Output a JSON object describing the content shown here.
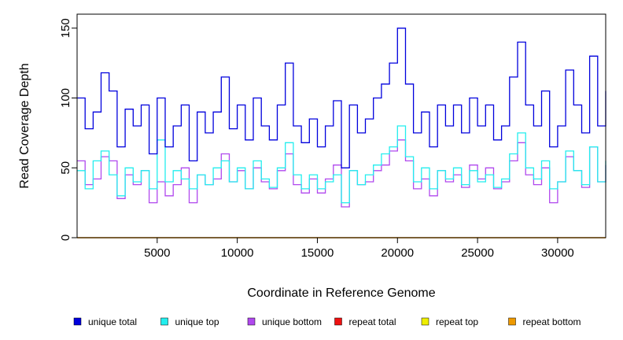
{
  "chart_data": {
    "type": "line",
    "title": "",
    "xlabel": "Coordinate in Reference Genome",
    "ylabel": "Read Coverage Depth",
    "xlim": [
      0,
      33000
    ],
    "ylim": [
      0,
      160
    ],
    "x_ticks": [
      5000,
      10000,
      15000,
      20000,
      25000,
      30000
    ],
    "y_ticks": [
      0,
      50,
      100,
      150
    ],
    "legend_position": "bottom",
    "grid": false,
    "series": [
      {
        "name": "unique total",
        "color": "#0000dd",
        "x": [
          0,
          500,
          1000,
          1500,
          2000,
          2500,
          3000,
          3500,
          4000,
          4500,
          5000,
          5500,
          6000,
          6500,
          7000,
          7500,
          8000,
          8500,
          9000,
          9500,
          10000,
          10500,
          11000,
          11500,
          12000,
          12500,
          13000,
          13500,
          14000,
          14500,
          15000,
          15500,
          16000,
          16500,
          17000,
          17500,
          18000,
          18500,
          19000,
          19500,
          20000,
          20500,
          21000,
          21500,
          22000,
          22500,
          23000,
          23500,
          24000,
          24500,
          25000,
          25500,
          26000,
          26500,
          27000,
          27500,
          28000,
          28500,
          29000,
          29500,
          30000,
          30500,
          31000,
          31500,
          32000,
          32500,
          33000
        ],
        "values": [
          100,
          78,
          90,
          118,
          105,
          65,
          92,
          80,
          95,
          60,
          100,
          65,
          80,
          95,
          55,
          90,
          75,
          90,
          115,
          78,
          95,
          70,
          100,
          80,
          70,
          95,
          125,
          80,
          68,
          85,
          65,
          80,
          98,
          50,
          95,
          75,
          85,
          100,
          110,
          125,
          150,
          110,
          75,
          90,
          65,
          95,
          80,
          95,
          75,
          100,
          80,
          95,
          70,
          80,
          115,
          140,
          95,
          80,
          105,
          65,
          80,
          120,
          95,
          75,
          130,
          80,
          105
        ]
      },
      {
        "name": "unique top",
        "color": "#22eeee",
        "x": [
          0,
          500,
          1000,
          1500,
          2000,
          2500,
          3000,
          3500,
          4000,
          4500,
          5000,
          5500,
          6000,
          6500,
          7000,
          7500,
          8000,
          8500,
          9000,
          9500,
          10000,
          10500,
          11000,
          11500,
          12000,
          12500,
          13000,
          13500,
          14000,
          14500,
          15000,
          15500,
          16000,
          16500,
          17000,
          17500,
          18000,
          18500,
          19000,
          19500,
          20000,
          20500,
          21000,
          21500,
          22000,
          22500,
          23000,
          23500,
          24000,
          24500,
          25000,
          25500,
          26000,
          26500,
          27000,
          27500,
          28000,
          28500,
          29000,
          29500,
          30000,
          30500,
          31000,
          31500,
          32000,
          32500,
          33000
        ],
        "values": [
          48,
          35,
          55,
          62,
          45,
          30,
          50,
          40,
          48,
          35,
          70,
          40,
          48,
          42,
          35,
          45,
          38,
          50,
          55,
          40,
          50,
          35,
          55,
          42,
          36,
          50,
          68,
          45,
          35,
          45,
          35,
          40,
          45,
          25,
          48,
          38,
          45,
          52,
          60,
          65,
          80,
          58,
          40,
          50,
          35,
          48,
          42,
          50,
          38,
          48,
          40,
          45,
          36,
          42,
          60,
          75,
          50,
          42,
          55,
          35,
          40,
          62,
          48,
          38,
          65,
          40,
          55
        ]
      },
      {
        "name": "unique bottom",
        "color": "#b048ee",
        "x": [
          0,
          500,
          1000,
          1500,
          2000,
          2500,
          3000,
          3500,
          4000,
          4500,
          5000,
          5500,
          6000,
          6500,
          7000,
          7500,
          8000,
          8500,
          9000,
          9500,
          10000,
          10500,
          11000,
          11500,
          12000,
          12500,
          13000,
          13500,
          14000,
          14500,
          15000,
          15500,
          16000,
          16500,
          17000,
          17500,
          18000,
          18500,
          19000,
          19500,
          20000,
          20500,
          21000,
          21500,
          22000,
          22500,
          23000,
          23500,
          24000,
          24500,
          25000,
          25500,
          26000,
          26500,
          27000,
          27500,
          28000,
          28500,
          29000,
          29500,
          30000,
          30500,
          31000,
          31500,
          32000,
          32500,
          33000
        ],
        "values": [
          55,
          38,
          42,
          58,
          55,
          28,
          45,
          38,
          48,
          25,
          40,
          30,
          38,
          50,
          25,
          45,
          38,
          42,
          60,
          40,
          48,
          35,
          50,
          40,
          35,
          48,
          60,
          38,
          32,
          42,
          32,
          42,
          52,
          22,
          48,
          38,
          40,
          48,
          52,
          62,
          70,
          55,
          35,
          42,
          30,
          48,
          40,
          45,
          36,
          52,
          42,
          50,
          35,
          40,
          55,
          68,
          45,
          38,
          50,
          25,
          40,
          58,
          48,
          36,
          65,
          40,
          52
        ]
      },
      {
        "name": "repeat total",
        "color": "#ee1111",
        "x": [
          0,
          33000
        ],
        "values": [
          0,
          0
        ]
      },
      {
        "name": "repeat top",
        "color": "#eeee00",
        "x": [
          0,
          33000
        ],
        "values": [
          0,
          0
        ]
      },
      {
        "name": "repeat bottom",
        "color": "#ee9900",
        "x": [
          0,
          33000
        ],
        "values": [
          0,
          0
        ]
      }
    ]
  }
}
